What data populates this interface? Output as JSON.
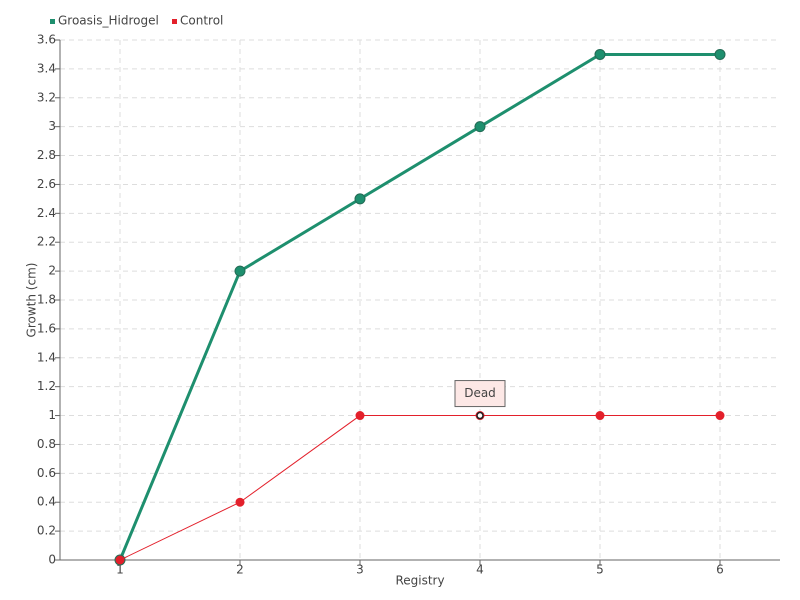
{
  "chart_data": {
    "type": "line",
    "x": [
      1,
      2,
      3,
      4,
      5,
      6
    ],
    "xlim": [
      0.5,
      6.5
    ],
    "xticks": [
      1,
      2,
      3,
      4,
      5,
      6
    ],
    "ylim": [
      0,
      3.6
    ],
    "yticks": [
      0,
      0.2,
      0.4,
      0.6,
      0.8,
      1,
      1.2,
      1.4,
      1.6,
      1.8,
      2,
      2.2,
      2.4,
      2.6,
      2.8,
      3,
      3.2,
      3.4,
      3.6
    ],
    "xlabel": "Registry",
    "ylabel": "Growth (cm)",
    "grid": true,
    "legend": "top-left",
    "series": [
      {
        "name": "Groasis_Hidrogel",
        "color": "#1e8f6e",
        "values": [
          0,
          2,
          2.5,
          3,
          3.5,
          3.5
        ]
      },
      {
        "name": "Control",
        "color": "#e3202b",
        "values": [
          0,
          0.4,
          1,
          1,
          1,
          1
        ]
      }
    ],
    "annotations": [
      {
        "text": "Dead",
        "x": 4,
        "y": 1
      }
    ]
  }
}
